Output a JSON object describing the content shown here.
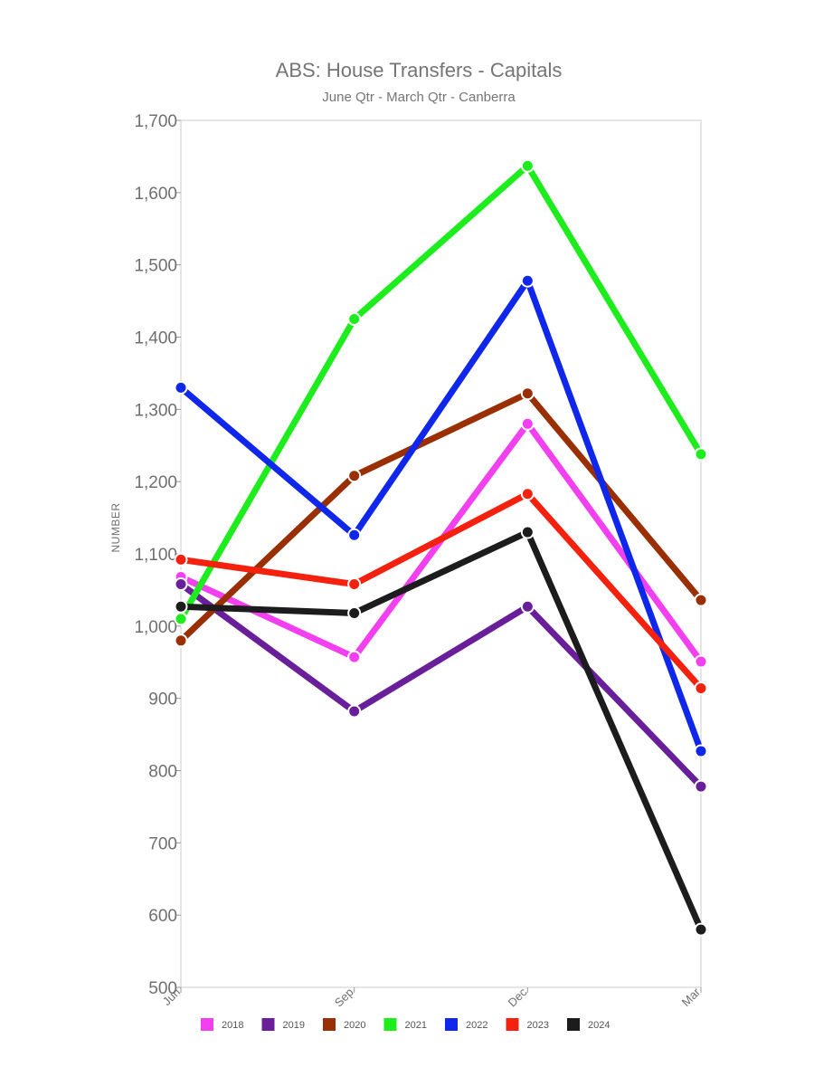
{
  "chart_data": {
    "type": "line",
    "title": "ABS: House Transfers - Capitals",
    "subtitle": "June Qtr - March Qtr - Canberra",
    "xlabel": "",
    "ylabel": "NUMBER",
    "categories": [
      "Jun",
      "Sep",
      "Dec",
      "Mar"
    ],
    "ylim": [
      500,
      1700
    ],
    "yticks": [
      500,
      600,
      700,
      800,
      900,
      1000,
      1100,
      1200,
      1300,
      1400,
      1500,
      1600,
      1700
    ],
    "ytick_labels": [
      "500",
      "600",
      "700",
      "800",
      "900",
      "1,000",
      "1,100",
      "1,200",
      "1,300",
      "1,400",
      "1,500",
      "1,600",
      "1,700"
    ],
    "grid": false,
    "legend_position": "bottom",
    "series": [
      {
        "name": "2018",
        "color": "#f23ff0",
        "values": [
          1068,
          957,
          1280,
          951
        ]
      },
      {
        "name": "2019",
        "color": "#6a1f9a",
        "values": [
          1058,
          882,
          1027,
          778
        ]
      },
      {
        "name": "2020",
        "color": "#9a2f04",
        "values": [
          980,
          1208,
          1322,
          1036
        ]
      },
      {
        "name": "2021",
        "color": "#1ded1d",
        "values": [
          1010,
          1425,
          1637,
          1238
        ]
      },
      {
        "name": "2022",
        "color": "#0f27ea",
        "values": [
          1330,
          1126,
          1478,
          827
        ]
      },
      {
        "name": "2023",
        "color": "#f4210f",
        "values": [
          1092,
          1058,
          1183,
          914
        ]
      },
      {
        "name": "2024",
        "color": "#1c1c1c",
        "values": [
          1027,
          1018,
          1130,
          580
        ]
      }
    ]
  }
}
